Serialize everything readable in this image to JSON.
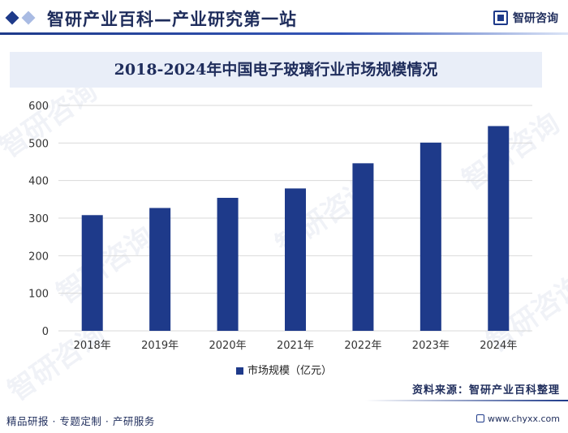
{
  "header": {
    "site_title": "智研产业百科—产业研究第一站",
    "logo_text": "智研咨询"
  },
  "watermark_text": "智研咨询",
  "chart_data": {
    "type": "bar",
    "title": "2018-2024年中国电子玻璃行业市场规模情况",
    "categories": [
      "2018年",
      "2019年",
      "2020年",
      "2021年",
      "2022年",
      "2023年",
      "2024年"
    ],
    "series": [
      {
        "name": "市场规模（亿元）",
        "values": [
          308,
          327,
          354,
          379,
          446,
          501,
          545
        ],
        "color": "#1e3a8a"
      }
    ],
    "ylim": [
      0,
      600
    ],
    "yticks": [
      0,
      100,
      200,
      300,
      400,
      500,
      600
    ],
    "grid": true,
    "legend_position": "bottom"
  },
  "footer": {
    "left": "精品研报 · 专题定制 · 产研服务",
    "source": "资料来源：智研产业百科整理",
    "url": "www.chyxx.com"
  }
}
